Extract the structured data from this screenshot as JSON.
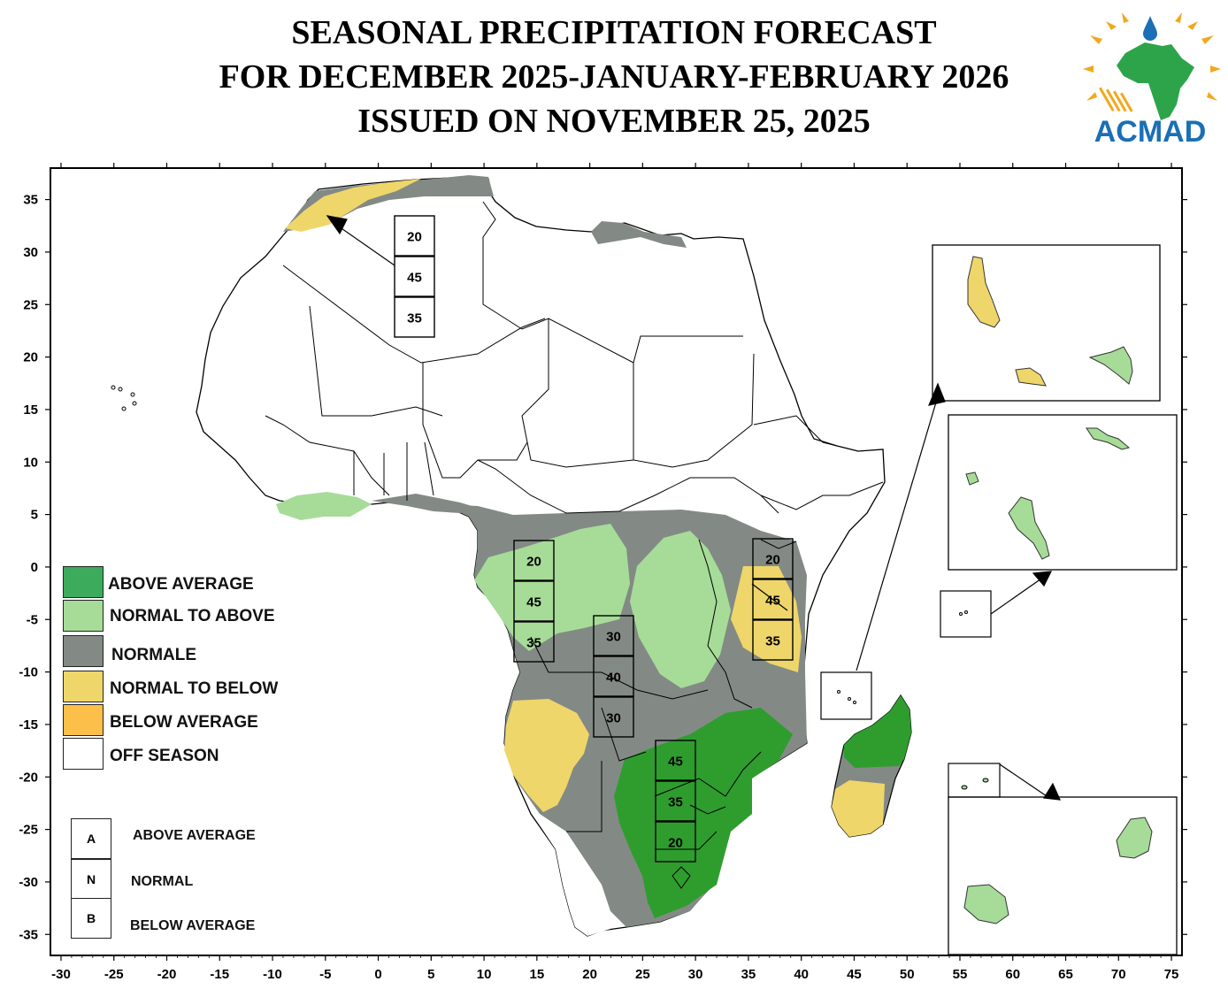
{
  "header": {
    "line1": "SEASONAL PRECIPITATION FORECAST",
    "line2": "FOR DECEMBER 2025-JANUARY-FEBRUARY 2026",
    "line3": "ISSUED ON NOVEMBER 25, 2025"
  },
  "logo": {
    "text": "ACMAD"
  },
  "axes": {
    "x_ticks": [
      "-30",
      "-25",
      "-20",
      "-15",
      "-10",
      "-5",
      "0",
      "5",
      "10",
      "15",
      "20",
      "25",
      "30",
      "35",
      "40",
      "45",
      "50",
      "55",
      "60",
      "65",
      "70",
      "75"
    ],
    "y_ticks": [
      "35",
      "30",
      "25",
      "20",
      "15",
      "10",
      "5",
      "0",
      "-5",
      "-10",
      "-15",
      "-20",
      "-25",
      "-30",
      "-35"
    ],
    "x_range": [
      -31,
      76
    ],
    "y_range": [
      -37,
      38
    ]
  },
  "colors": {
    "above_average": "#3dab5c",
    "normal_to_above": "#a8df8f",
    "normal": "#828b8c",
    "normal_to_below": "#ebd65c",
    "below_average": "#fbbf4a",
    "off_season": "#ffffff",
    "dark_green": "#2e9d2e"
  },
  "legend": {
    "items": [
      {
        "label": "ABOVE AVERAGE",
        "color": "#3dab5c"
      },
      {
        "label": "NORMAL TO ABOVE",
        "color": "#a6dc98"
      },
      {
        "label": "NORMALE",
        "color": "#838a85"
      },
      {
        "label": "NORMAL TO BELOW",
        "color": "#efd66a"
      },
      {
        "label": "BELOW AVERAGE",
        "color": "#fbbf4a"
      },
      {
        "label": "OFF SEASON",
        "color": "#ffffff"
      }
    ],
    "categories": [
      {
        "letter": "A",
        "label": "ABOVE AVERAGE"
      },
      {
        "letter": "N",
        "label": "NORMAL"
      },
      {
        "letter": "B",
        "label": "BELOW AVERAGE"
      }
    ]
  },
  "probability_boxes": [
    {
      "region": "North-West Africa",
      "values": [
        "20",
        "45",
        "35"
      ]
    },
    {
      "region": "Gabon / Congo",
      "values": [
        "20",
        "45",
        "35"
      ]
    },
    {
      "region": "Central DRC",
      "values": [
        "30",
        "40",
        "30"
      ]
    },
    {
      "region": "Kenya / Tanzania coast",
      "values": [
        "20",
        "45",
        "35"
      ]
    },
    {
      "region": "Southern Africa",
      "values": [
        "45",
        "35",
        "20"
      ]
    }
  ]
}
